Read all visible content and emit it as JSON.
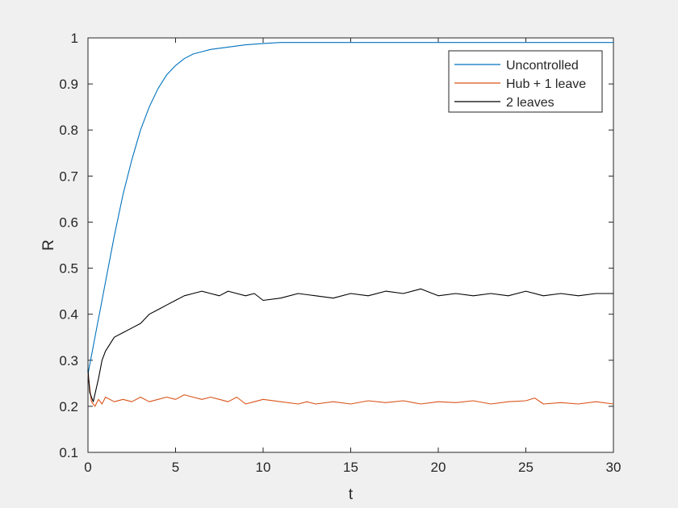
{
  "chart_data": {
    "type": "line",
    "title": "",
    "xlabel": "t",
    "ylabel": "R",
    "xlim": [
      0,
      30
    ],
    "ylim": [
      0.1,
      1
    ],
    "xticks": [
      "0",
      "5",
      "10",
      "15",
      "20",
      "25",
      "30"
    ],
    "yticks": [
      "0.1",
      "0.2",
      "0.3",
      "0.4",
      "0.5",
      "0.6",
      "0.7",
      "0.8",
      "0.9",
      "1"
    ],
    "grid": false,
    "legend_position": "top-right",
    "series": [
      {
        "name": "Uncontrolled",
        "color": "#0072bd",
        "x": [
          0,
          0.25,
          0.5,
          0.75,
          1,
          1.5,
          2,
          2.5,
          3,
          3.5,
          4,
          4.5,
          5,
          5.5,
          6,
          6.5,
          7,
          8,
          9,
          10,
          11,
          12,
          14,
          16,
          18,
          20,
          22,
          24,
          26,
          28,
          30
        ],
        "y": [
          0.27,
          0.32,
          0.37,
          0.42,
          0.47,
          0.57,
          0.66,
          0.735,
          0.8,
          0.85,
          0.89,
          0.92,
          0.94,
          0.955,
          0.965,
          0.97,
          0.975,
          0.98,
          0.985,
          0.988,
          0.99,
          0.99,
          0.99,
          0.99,
          0.99,
          0.99,
          0.99,
          0.99,
          0.99,
          0.99,
          0.99
        ]
      },
      {
        "name": "Hub + 1 leave",
        "color": "#d95319",
        "x": [
          0,
          0.1,
          0.2,
          0.4,
          0.6,
          0.8,
          1,
          1.5,
          2,
          2.5,
          3,
          3.5,
          4,
          4.5,
          5,
          5.5,
          6,
          6.5,
          7,
          7.5,
          8,
          8.5,
          9,
          9.5,
          10,
          11,
          12,
          12.5,
          13,
          14,
          15,
          16,
          17,
          18,
          19,
          20,
          21,
          22,
          23,
          24,
          25,
          25.5,
          26,
          27,
          28,
          29,
          30
        ],
        "y": [
          0.27,
          0.24,
          0.21,
          0.2,
          0.215,
          0.205,
          0.22,
          0.21,
          0.215,
          0.21,
          0.22,
          0.21,
          0.215,
          0.22,
          0.215,
          0.225,
          0.22,
          0.215,
          0.22,
          0.215,
          0.21,
          0.22,
          0.205,
          0.21,
          0.215,
          0.21,
          0.205,
          0.21,
          0.205,
          0.21,
          0.205,
          0.212,
          0.208,
          0.212,
          0.205,
          0.21,
          0.208,
          0.212,
          0.205,
          0.21,
          0.212,
          0.218,
          0.205,
          0.208,
          0.205,
          0.21,
          0.205
        ]
      },
      {
        "name": "2 leaves",
        "color": "#000000",
        "x": [
          0,
          0.1,
          0.3,
          0.6,
          0.8,
          1,
          1.5,
          2,
          2.5,
          3,
          3.5,
          4,
          4.5,
          5,
          5.5,
          6,
          6.5,
          7,
          7.5,
          8,
          8.5,
          9,
          9.5,
          10,
          11,
          12,
          13,
          14,
          15,
          16,
          17,
          18,
          19,
          20,
          21,
          22,
          23,
          24,
          25,
          26,
          27,
          28,
          29,
          30
        ],
        "y": [
          0.28,
          0.23,
          0.21,
          0.26,
          0.3,
          0.32,
          0.35,
          0.36,
          0.37,
          0.38,
          0.4,
          0.41,
          0.42,
          0.43,
          0.44,
          0.445,
          0.45,
          0.445,
          0.44,
          0.45,
          0.445,
          0.44,
          0.445,
          0.43,
          0.435,
          0.445,
          0.44,
          0.435,
          0.445,
          0.44,
          0.45,
          0.445,
          0.455,
          0.44,
          0.445,
          0.44,
          0.445,
          0.44,
          0.45,
          0.44,
          0.445,
          0.44,
          0.445,
          0.445
        ]
      }
    ]
  }
}
